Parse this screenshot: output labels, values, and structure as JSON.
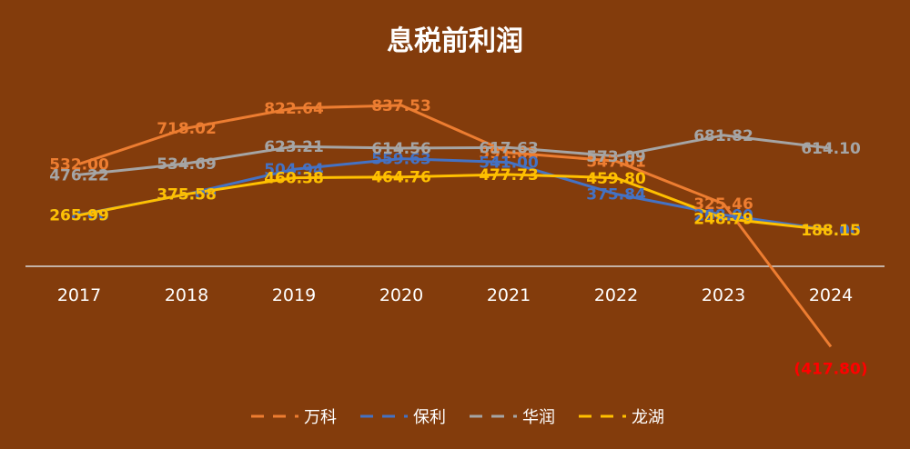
{
  "chart_data": {
    "type": "line",
    "title": "息税前利润",
    "categories": [
      "2017",
      "2018",
      "2019",
      "2020",
      "2021",
      "2022",
      "2023",
      "2024"
    ],
    "ylim": [
      -500,
      1000
    ],
    "legend_position": "bottom",
    "grid": false,
    "series": [
      {
        "name": "万科",
        "color": "#ed7d31",
        "values": [
          532.0,
          718.02,
          822.64,
          837.53,
          591.82,
          547.01,
          325.46,
          -417.8
        ],
        "labels": [
          "532.00",
          "718.02",
          "822.64",
          "837.53",
          "591.82",
          "547.01",
          "325.46",
          "(417.80)"
        ]
      },
      {
        "name": "保利",
        "color": "#4472c4",
        "values": [
          268.0,
          375.0,
          504.94,
          559.63,
          541.0,
          375.84,
          268.0,
          188.0
        ],
        "labels": [
          "268.00",
          "375.00",
          "504.94",
          "559.63",
          "541.00",
          "375.84",
          "268.00",
          "188.00"
        ]
      },
      {
        "name": "华润",
        "color": "#a5a5a5",
        "values": [
          476.22,
          534.69,
          623.21,
          614.56,
          617.63,
          573.09,
          681.82,
          614.1
        ],
        "labels": [
          "476.22",
          "534.69",
          "623.21",
          "614.56",
          "617.63",
          "573.09",
          "681.82",
          "614.10"
        ]
      },
      {
        "name": "龙湖",
        "color": "#ffc000",
        "values": [
          265.99,
          375.58,
          460.38,
          464.76,
          477.73,
          459.8,
          248.79,
          188.15
        ],
        "labels": [
          "265.99",
          "375.58",
          "460.38",
          "464.76",
          "477.73",
          "459.80",
          "248.79",
          "188.15"
        ]
      }
    ],
    "negative_label_color": "#ff0000"
  }
}
